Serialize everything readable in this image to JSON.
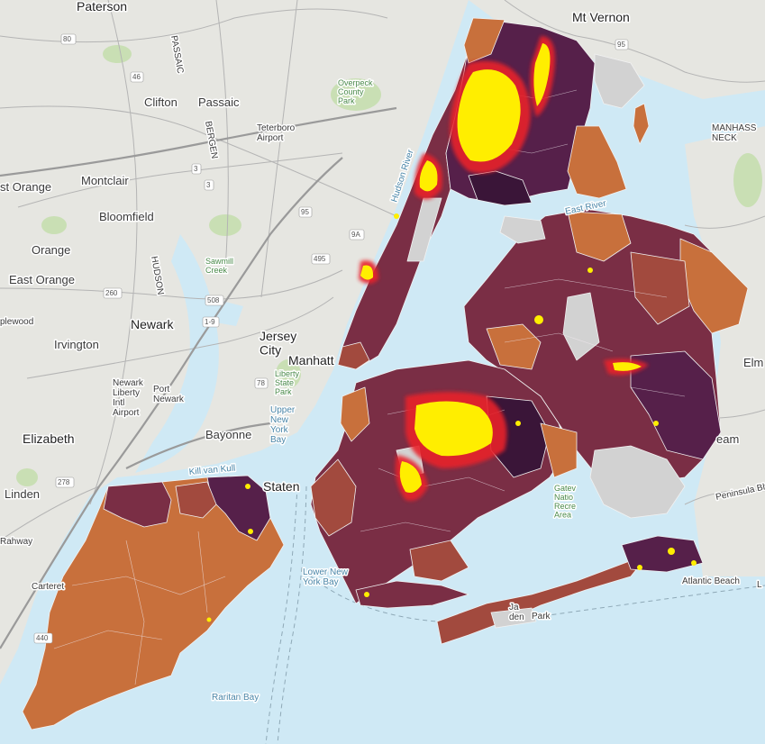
{
  "map": {
    "colors": {
      "water": "#cfe9f5",
      "land": "#e6e6e1",
      "park": "#c9dfb4",
      "road": "#b8b8b8",
      "nodata": "#d2d2d2",
      "low": "#c8703c",
      "mid_low": "#a24a3e",
      "mid": "#7a2e45",
      "high": "#56204a",
      "very_high": "#3a1538",
      "hotspot": "#ffee00",
      "hotspot_edge": "#e8242a"
    },
    "labels": {
      "paterson": "Paterson",
      "mt_vernon": "Mt Vernon",
      "clifton": "Clifton",
      "passaic": "Passaic",
      "passaic_river": "PASSAIC",
      "bergen": "BERGEN",
      "teterboro": "Teterboro\nAirport",
      "overpeck": "Overpeck\nCounty\nPark",
      "east_orange_top": "st Orange",
      "montclair": "Montclair",
      "bloomfield": "Bloomfield",
      "orange": "Orange",
      "east_orange": "East Orange",
      "hudson": "HUDSON",
      "sawmill": "Sawmill\nCreek",
      "hudson_river": "Hudson River",
      "east_river": "East River",
      "manhasset": "MANHASS\nNECK",
      "newark": "Newark",
      "plewood": "plewood",
      "irvington": "Irvington",
      "jersey_city": "Jersey\nCity",
      "manhattan": "Manhatt",
      "liberty": "Liberty\nState\nPark",
      "upper_ny_bay": "Upper\nNew\nYork\nBay",
      "newark_airport": "Newark\nLiberty\nIntl\nAirport",
      "port_newark": "Port\nNewark",
      "bayonne": "Bayonne",
      "elizabeth": "Elizabeth",
      "linden": "Linden",
      "staten": "Staten",
      "kill_van_kull": "Kill van Kull",
      "rahway": "Rahway",
      "carteret": "Carteret",
      "lower_ny_bay": "Lower New\nYork Bay",
      "raritan_bay": "Raritan Bay",
      "atlantic_beach": "Atlantic Beach",
      "elm": "Elm",
      "eam": "eam",
      "peninsula": "Peninsula Blvd",
      "gateway": "Gatev\nNatio\nRecre\nArea",
      "jamaica": "Ja\nden",
      "jamaica_bay_park": "Park",
      "l": "L"
    },
    "shields": [
      "80",
      "46",
      "3",
      "3",
      "95",
      "495",
      "9A",
      "95",
      "1-9",
      "260",
      "508",
      "78",
      "278",
      "440"
    ]
  }
}
